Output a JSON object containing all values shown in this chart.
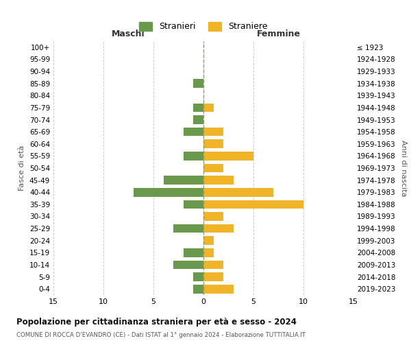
{
  "age_groups": [
    "100+",
    "95-99",
    "90-94",
    "85-89",
    "80-84",
    "75-79",
    "70-74",
    "65-69",
    "60-64",
    "55-59",
    "50-54",
    "45-49",
    "40-44",
    "35-39",
    "30-34",
    "25-29",
    "20-24",
    "15-19",
    "10-14",
    "5-9",
    "0-4"
  ],
  "birth_years": [
    "≤ 1923",
    "1924-1928",
    "1929-1933",
    "1934-1938",
    "1939-1943",
    "1944-1948",
    "1949-1953",
    "1954-1958",
    "1959-1963",
    "1964-1968",
    "1969-1973",
    "1974-1978",
    "1979-1983",
    "1984-1988",
    "1989-1993",
    "1994-1998",
    "1999-2003",
    "2004-2008",
    "2009-2013",
    "2014-2018",
    "2019-2023"
  ],
  "males": [
    0,
    0,
    0,
    1,
    0,
    1,
    1,
    2,
    0,
    2,
    0,
    4,
    7,
    2,
    0,
    3,
    0,
    2,
    3,
    1,
    1
  ],
  "females": [
    0,
    0,
    0,
    0,
    0,
    1,
    0,
    2,
    2,
    5,
    2,
    3,
    7,
    10,
    2,
    3,
    1,
    1,
    2,
    2,
    3
  ],
  "male_color": "#6a994e",
  "female_color": "#f0b429",
  "grid_color": "#cccccc",
  "center_line_color": "#999966",
  "background_color": "#ffffff",
  "title": "Popolazione per cittadinanza straniera per età e sesso - 2024",
  "subtitle": "COMUNE DI ROCCA D'EVANDRO (CE) - Dati ISTAT al 1° gennaio 2024 - Elaborazione TUTTITALIA.IT",
  "ylabel_left": "Fasce di età",
  "ylabel_right": "Anni di nascita",
  "header_left": "Maschi",
  "header_right": "Femmine",
  "legend_male": "Stranieri",
  "legend_female": "Straniere",
  "xlim": 15
}
